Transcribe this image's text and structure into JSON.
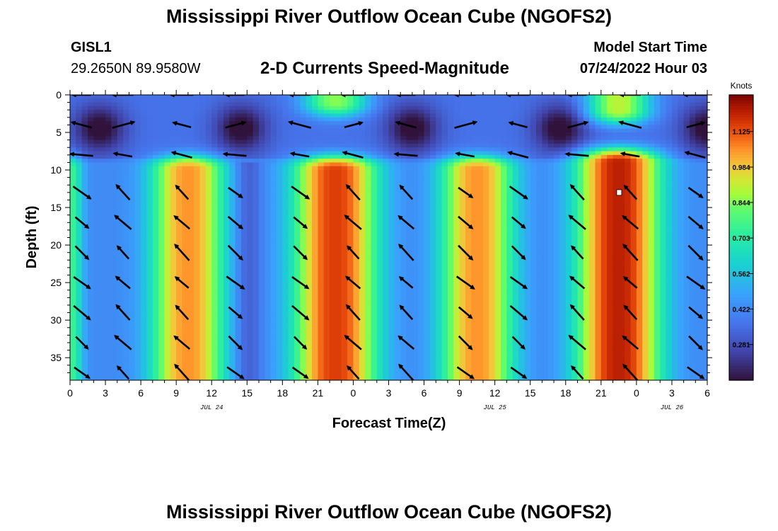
{
  "header": {
    "title": "Mississippi River Outflow Ocean Cube (NGOFS2)",
    "station_id": "GISL1",
    "coordinates": "29.2650N  89.9580W",
    "subtitle": "2-D Currents Speed-Magnitude",
    "model_start_label": "Model Start Time",
    "model_start_value": "07/24/2022 Hour 03"
  },
  "footer": {
    "title": "Mississippi River Outflow Ocean Cube (NGOFS2)"
  },
  "colors": {
    "low": "#30123b",
    "mid": "#46f884",
    "high": "#7a0403",
    "arrow": "#000000"
  },
  "chart_data": {
    "type": "heatmap",
    "xlabel": "Forecast Time(Z)",
    "ylabel": "Depth (ft)",
    "x_range": [
      0,
      54
    ],
    "y_range": [
      0,
      38
    ],
    "x_tick_values": [
      0,
      3,
      6,
      9,
      12,
      15,
      18,
      21,
      24,
      27,
      30,
      33,
      36,
      39,
      42,
      45,
      48,
      51,
      54
    ],
    "x_tick_labels": [
      "0",
      "3",
      "6",
      "9",
      "12",
      "15",
      "18",
      "21",
      "0",
      "3",
      "6",
      "9",
      "12",
      "15",
      "18",
      "21",
      "0",
      "3",
      "6"
    ],
    "date_markers": [
      {
        "x": 12,
        "label": "JUL 24"
      },
      {
        "x": 36,
        "label": "JUL 25"
      },
      {
        "x": 51,
        "label": "JUL 26"
      }
    ],
    "y_tick_values": [
      0,
      5,
      10,
      15,
      20,
      25,
      30,
      35
    ],
    "y_tick_labels": [
      "0",
      "5",
      "10",
      "15",
      "20",
      "25",
      "30",
      "35"
    ],
    "colorbar": {
      "unit": "Knots",
      "min": 0.14,
      "max": 1.27,
      "tick_values": [
        0.281,
        0.422,
        0.562,
        0.703,
        0.844,
        0.984,
        1.125
      ],
      "tick_labels": [
        "0.281",
        "0.422",
        "0.562",
        "0.703",
        "0.844",
        "0.984",
        "1.125"
      ]
    },
    "speed_blobs": [
      {
        "x": 10,
        "y_top": 10,
        "y_bot": 38,
        "peak": 1.05,
        "half_width": 3.5
      },
      {
        "x": 22.5,
        "y_top": 10,
        "y_bot": 38,
        "peak": 1.15,
        "half_width": 4.0
      },
      {
        "x": 34.5,
        "y_top": 10,
        "y_bot": 38,
        "peak": 1.05,
        "half_width": 3.5
      },
      {
        "x": 46.5,
        "y_top": 9,
        "y_bot": 38,
        "peak": 1.2,
        "half_width": 4.0
      },
      {
        "x": 0,
        "y_top": 10,
        "y_bot": 38,
        "peak": 0.75,
        "half_width": 1.2
      },
      {
        "x": 22.5,
        "y_top": 0,
        "y_bot": 1,
        "peak": 0.85,
        "half_width": 3.0
      },
      {
        "x": 46.5,
        "y_top": 0,
        "y_bot": 2,
        "peak": 0.9,
        "half_width": 3.0
      }
    ],
    "arrow_columns": [
      1,
      4.5,
      9.5,
      14,
      19.5,
      24,
      28.5,
      33.5,
      38,
      43,
      47.5,
      53
    ],
    "arrow_depths": [
      0,
      4,
      8,
      13,
      17,
      21,
      25,
      29,
      33,
      37
    ],
    "selected_marker": {
      "x": 46.5,
      "y": 13
    }
  }
}
